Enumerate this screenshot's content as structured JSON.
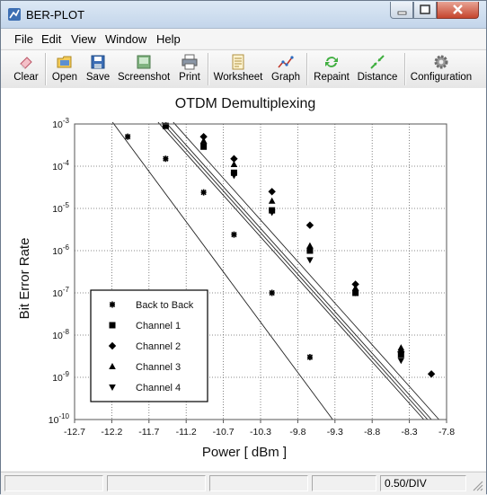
{
  "window": {
    "title": "BER-PLOT"
  },
  "menu": {
    "items": [
      "File",
      "Edit",
      "View",
      "Window",
      "Help"
    ]
  },
  "toolbar": {
    "clear": "Clear",
    "open": "Open",
    "save": "Save",
    "screenshot": "Screenshot",
    "print": "Print",
    "worksheet": "Worksheet",
    "graph": "Graph",
    "repaint": "Repaint",
    "distance": "Distance",
    "configuration": "Configuration"
  },
  "status": {
    "scale": "0.50/DIV"
  },
  "chart_data": {
    "type": "scatter",
    "title": "OTDM Demultiplexing",
    "xlabel": "Power [ dBm ]",
    "ylabel": "Bit Error Rate",
    "x_ticks": [
      "-12.7",
      "-12.2",
      "-11.7",
      "-11.2",
      "-10.7",
      "-10.3",
      "-9.8",
      "-9.3",
      "-8.8",
      "-8.3",
      "-7.8"
    ],
    "xlim": [
      -12.7,
      -7.8
    ],
    "y_ticks": [
      {
        "base": "10",
        "exp": "-3"
      },
      {
        "base": "10",
        "exp": "-4"
      },
      {
        "base": "10",
        "exp": "-5"
      },
      {
        "base": "10",
        "exp": "-6"
      },
      {
        "base": "10",
        "exp": "-7"
      },
      {
        "base": "10",
        "exp": "-8"
      },
      {
        "base": "10",
        "exp": "-9"
      },
      {
        "base": "10",
        "exp": "-10"
      }
    ],
    "ylim_exp": [
      -10,
      -3
    ],
    "y_scale": "log",
    "grid": true,
    "legend": "bottom-left",
    "series": [
      {
        "name": "Back to Back",
        "marker": "star",
        "points": [
          [
            -12.0,
            0.0005
          ],
          [
            -11.5,
            0.00015
          ],
          [
            -11.0,
            2.4e-05
          ],
          [
            -10.6,
            2.4e-06
          ],
          [
            -10.1,
            1e-07
          ],
          [
            -9.6,
            3e-09
          ]
        ],
        "fit": [
          [
            -12.2,
            0.0011
          ],
          [
            -9.3,
            1e-10
          ]
        ]
      },
      {
        "name": "Channel 1",
        "marker": "square",
        "points": [
          [
            -11.5,
            0.0009
          ],
          [
            -11.0,
            0.00029
          ],
          [
            -10.6,
            7e-05
          ],
          [
            -10.1,
            9e-06
          ],
          [
            -9.6,
            1e-06
          ],
          [
            -9.0,
            1e-07
          ],
          [
            -8.4,
            3.5e-09
          ]
        ],
        "fit": [
          [
            -11.6,
            0.0011
          ],
          [
            -8.1,
            1e-10
          ]
        ]
      },
      {
        "name": "Channel 2",
        "marker": "diamond",
        "points": [
          [
            -11.0,
            0.0005
          ],
          [
            -10.6,
            0.00015
          ],
          [
            -10.1,
            2.5e-05
          ],
          [
            -9.6,
            4e-06
          ],
          [
            -9.0,
            1.6e-07
          ],
          [
            -8.4,
            4e-09
          ],
          [
            -8.0,
            1.2e-09
          ]
        ],
        "fit": [
          [
            -11.4,
            0.0011
          ],
          [
            -7.9,
            1e-10
          ]
        ]
      },
      {
        "name": "Channel 3",
        "marker": "triangle-up",
        "points": [
          [
            -11.0,
            0.0004
          ],
          [
            -10.6,
            0.00011
          ],
          [
            -10.1,
            1.5e-05
          ],
          [
            -9.6,
            1.3e-06
          ],
          [
            -9.0,
            1.3e-07
          ],
          [
            -8.4,
            5e-09
          ]
        ],
        "fit": [
          [
            -11.5,
            0.0011
          ],
          [
            -8.0,
            1e-10
          ]
        ]
      },
      {
        "name": "Channel 4",
        "marker": "triangle-down",
        "points": [
          [
            -11.0,
            0.0003
          ],
          [
            -10.6,
            6e-05
          ],
          [
            -10.1,
            8e-06
          ],
          [
            -9.6,
            6e-07
          ],
          [
            -9.0,
            1e-07
          ],
          [
            -8.4,
            2.5e-09
          ]
        ],
        "fit": [
          [
            -11.55,
            0.0011
          ],
          [
            -8.05,
            1e-10
          ]
        ]
      }
    ]
  }
}
